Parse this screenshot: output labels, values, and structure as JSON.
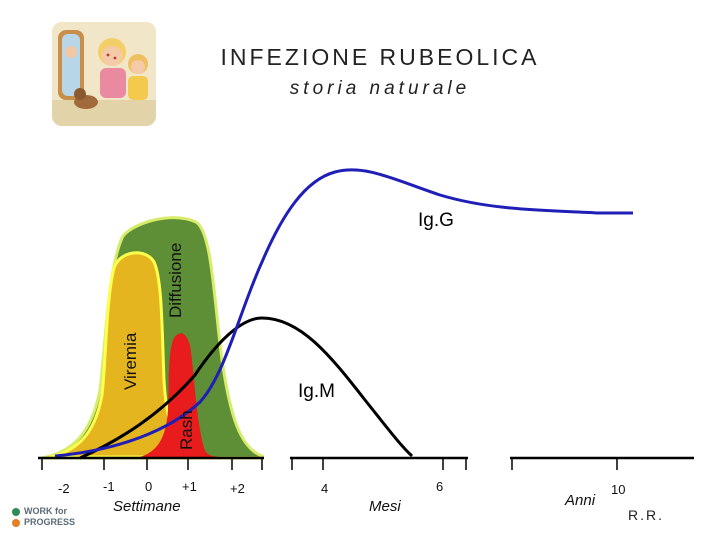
{
  "header": {
    "title": "INFEZIONE RUBEOLICA",
    "subtitle": "storia naturale"
  },
  "phases": {
    "viremia": "Viremia",
    "diffusione": "Diffusione",
    "rash": "Rash"
  },
  "curves": {
    "igg": "Ig.G",
    "igm": "Ig.M"
  },
  "axis": {
    "ticks": [
      "-2",
      "-1",
      "0",
      "+1",
      "+2",
      "4",
      "6",
      "10"
    ],
    "unit_weeks": "Settimane",
    "unit_months": "Mesi",
    "unit_years": "Anni"
  },
  "logo": {
    "line1": "WORK for",
    "line2": "PROGRESS"
  },
  "footer": {
    "credit": "R.R."
  },
  "colors": {
    "igg": "#1f1fb8",
    "igm": "#000000",
    "diffusione": "#5e8e35",
    "viremia": "#e5b51f",
    "rash": "#e81c1c",
    "diffusione_outline": "#d8ec6c",
    "viremia_outline": "#ffff4d"
  }
}
